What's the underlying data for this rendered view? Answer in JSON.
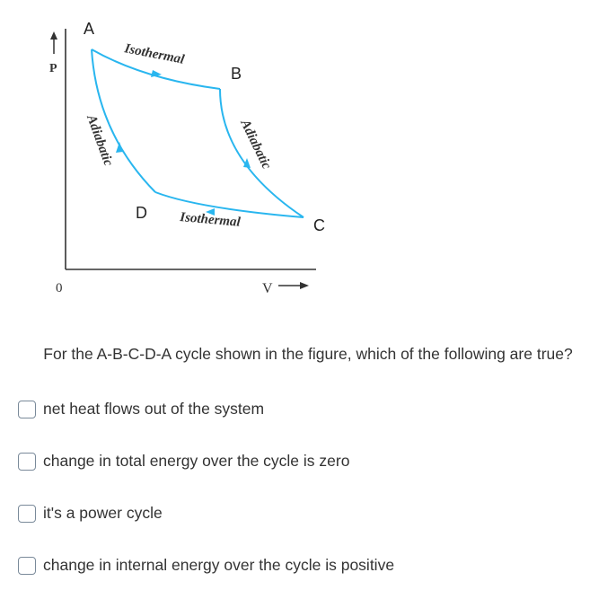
{
  "figure": {
    "points": {
      "a": "A",
      "b": "B",
      "c": "C",
      "d": "D"
    },
    "curves": {
      "ab": "Isothermal",
      "bc": "Adiabatic",
      "cd": "Isothermal",
      "da": "Adiabatic"
    },
    "axes": {
      "y_label": "P",
      "x_label": "V",
      "origin": "0"
    },
    "colors": {
      "curve": "#29b6ef",
      "axis": "#333333"
    }
  },
  "question": {
    "text": "For the A-B-C-D-A cycle shown in the figure, which of the following are true?"
  },
  "options": [
    {
      "label": "net heat flows out of the system"
    },
    {
      "label": "change in total energy over the cycle is zero"
    },
    {
      "label": "it's a power cycle"
    },
    {
      "label": "change in internal energy over the cycle is positive"
    }
  ]
}
